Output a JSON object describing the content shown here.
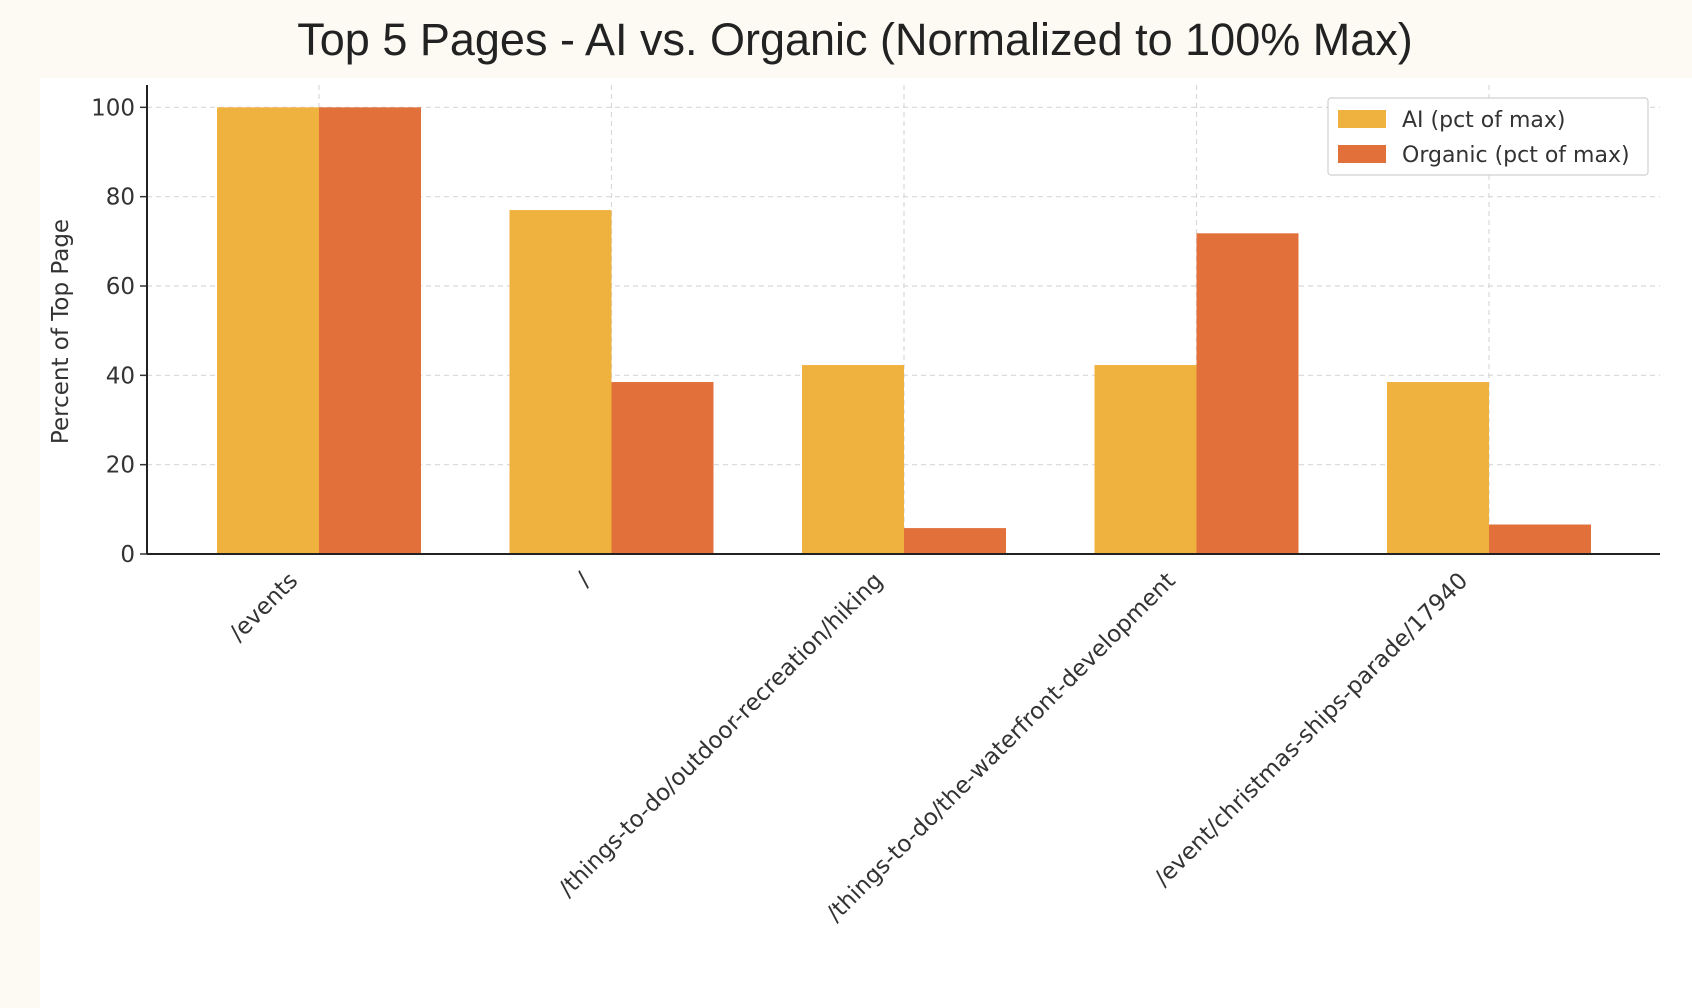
{
  "chart_data": {
    "type": "bar",
    "title": "Top 5 Pages - AI vs. Organic (Normalized to 100% Max)",
    "xlabel": "",
    "ylabel": "Percent of Top Page",
    "ylim": [
      0,
      105
    ],
    "yticks": [
      0,
      20,
      40,
      60,
      80,
      100
    ],
    "grid": true,
    "legend_position": "top-right",
    "categories": [
      "/events",
      "/",
      "/things-to-do/outdoor-recreation/hiking",
      "/things-to-do/the-waterfront-development",
      "/event/christmas-ships-parade/17940"
    ],
    "series": [
      {
        "name": "AI (pct of max)",
        "color": "#f0b23e",
        "values": [
          100,
          77,
          42.3,
          42.3,
          38.5
        ]
      },
      {
        "name": "Organic (pct of max)",
        "color": "#e2703a",
        "values": [
          100,
          38.5,
          5.8,
          71.8,
          6.6
        ]
      }
    ]
  }
}
